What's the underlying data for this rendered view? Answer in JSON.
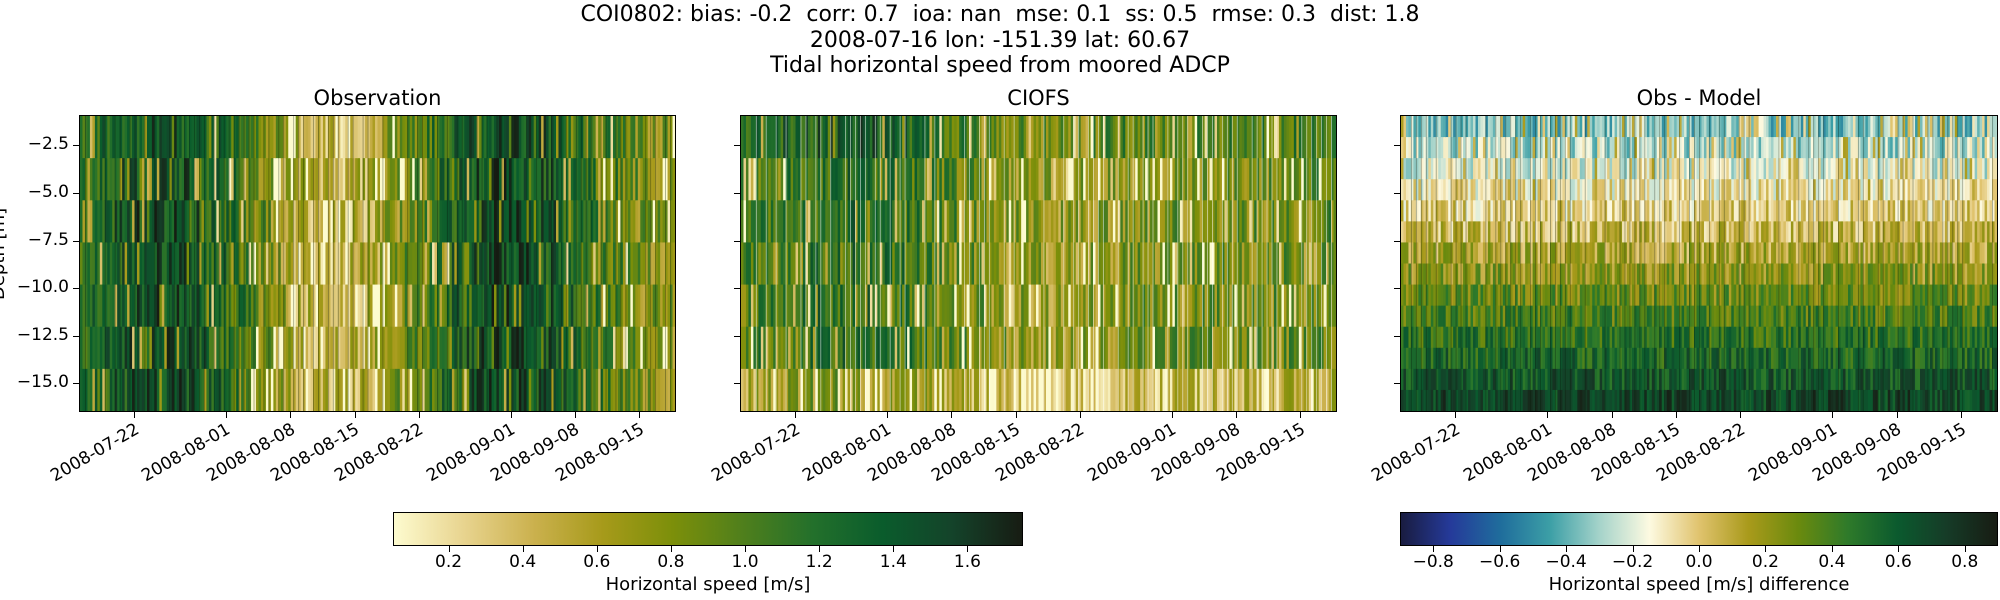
{
  "figure": {
    "title_line1": "COI0802: bias: -0.2  corr: 0.7  ioa: nan  mse: 0.1  ss: 0.5  rmse: 0.3  dist: 1.8",
    "title_line2": "2008-07-16 lon: -151.39 lat: 60.67",
    "title_line3": "Tidal horizontal speed from moored ADCP",
    "ylabel": "Depth [m]"
  },
  "chart_data": [
    {
      "type": "heatmap",
      "title": "Observation",
      "x_tick_labels": [
        "2008-07-22",
        "2008-08-01",
        "2008-08-08",
        "2008-08-15",
        "2008-08-22",
        "2008-09-01",
        "2008-09-08",
        "2008-09-15"
      ],
      "x_range": [
        "2008-07-16",
        "2008-09-19"
      ],
      "y_tick_values": [
        -2.5,
        -5.0,
        -7.5,
        -10.0,
        -12.5,
        -15.0
      ],
      "y_tick_labels": [
        "−2.5",
        "−5.0",
        "−7.5",
        "−10.0",
        "−12.5",
        "−15.0"
      ],
      "ylim": [
        -16.5,
        -0.9
      ],
      "colormap": "speed",
      "clim": [
        0.05,
        1.75
      ]
    },
    {
      "type": "heatmap",
      "title": "CIOFS",
      "x_tick_labels": [
        "2008-07-22",
        "2008-08-01",
        "2008-08-08",
        "2008-08-15",
        "2008-08-22",
        "2008-09-01",
        "2008-09-08",
        "2008-09-15"
      ],
      "x_range": [
        "2008-07-16",
        "2008-09-19"
      ],
      "y_tick_values": [
        -2.5,
        -5.0,
        -7.5,
        -10.0,
        -12.5,
        -15.0
      ],
      "ylim": [
        -16.5,
        -0.9
      ],
      "colormap": "speed",
      "clim": [
        0.05,
        1.75
      ]
    },
    {
      "type": "heatmap",
      "title": "Obs - Model",
      "x_tick_labels": [
        "2008-07-22",
        "2008-08-01",
        "2008-08-08",
        "2008-08-15",
        "2008-08-22",
        "2008-09-01",
        "2008-09-08",
        "2008-09-15"
      ],
      "x_range": [
        "2008-07-16",
        "2008-09-19"
      ],
      "y_tick_values": [
        -2.5,
        -5.0,
        -7.5,
        -10.0,
        -12.5,
        -15.0
      ],
      "ylim": [
        -16.5,
        -0.9
      ],
      "colormap": "diverging",
      "clim": [
        -0.9,
        0.9
      ]
    }
  ],
  "colorbars": [
    {
      "label": "Horizontal speed [m/s]",
      "range": [
        0.05,
        1.75
      ],
      "ticks": [
        0.2,
        0.4,
        0.6,
        0.8,
        1.0,
        1.2,
        1.4,
        1.6
      ],
      "tick_labels": [
        "0.2",
        "0.4",
        "0.6",
        "0.8",
        "1.0",
        "1.2",
        "1.4",
        "1.6"
      ],
      "colors": [
        "#fdfbcf",
        "#e8d48f",
        "#cbb14e",
        "#a69a1a",
        "#7c8f0a",
        "#4f7f1c",
        "#23702b",
        "#0a5c2c",
        "#14432a",
        "#171c13"
      ]
    },
    {
      "label": "Horizontal speed [m/s] difference",
      "range": [
        -0.9,
        0.9
      ],
      "ticks": [
        -0.8,
        -0.6,
        -0.4,
        -0.2,
        0.0,
        0.2,
        0.4,
        0.6,
        0.8
      ],
      "tick_labels": [
        "−0.8",
        "−0.6",
        "−0.4",
        "−0.2",
        "0.0",
        "0.2",
        "0.4",
        "0.6",
        "0.8"
      ],
      "colors": [
        "#191c40",
        "#253a9a",
        "#1f6d9c",
        "#3c9fa6",
        "#a5d3ca",
        "#fdfae1",
        "#e0c36e",
        "#a99a1b",
        "#6a8a0e",
        "#2e7a2a",
        "#0b5a2e",
        "#163b27",
        "#171c13"
      ]
    }
  ]
}
